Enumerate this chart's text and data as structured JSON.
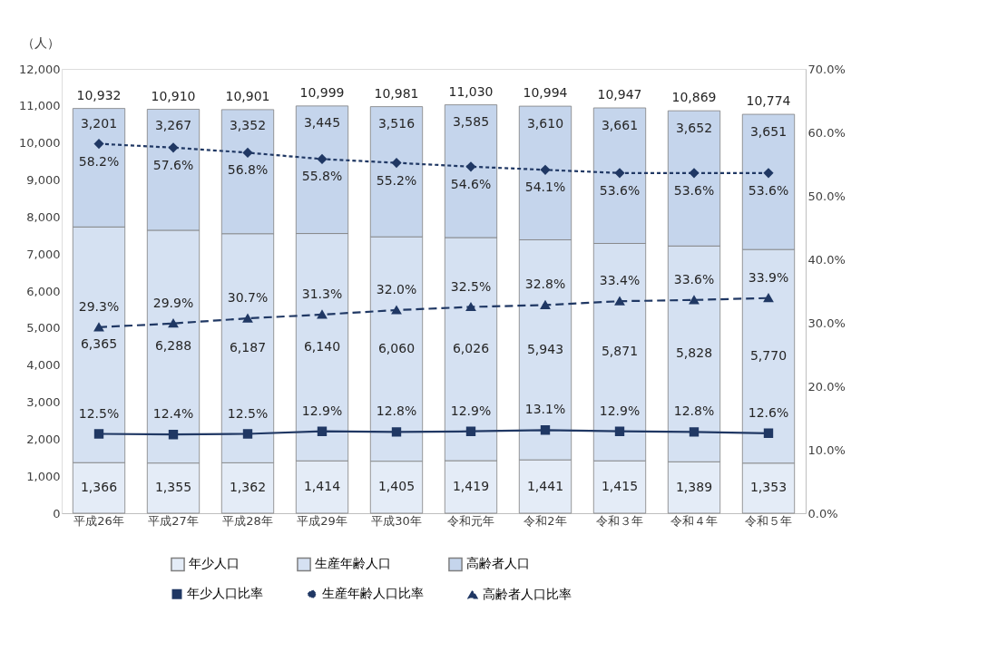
{
  "chart_data": {
    "type": "bar",
    "stacked": true,
    "ylabel": "（人）",
    "categories": [
      "平成26年",
      "平成27年",
      "平成28年",
      "平成29年",
      "平成30年",
      "令和元年",
      "令和2年",
      "令和３年",
      "令和４年",
      "令和５年"
    ],
    "series": [
      {
        "name": "年少人口",
        "color": "#e4ecf7",
        "values": [
          1366,
          1355,
          1362,
          1414,
          1405,
          1419,
          1441,
          1415,
          1389,
          1353
        ],
        "value_labels": [
          "1,366",
          "1,355",
          "1,362",
          "1,414",
          "1,405",
          "1,419",
          "1,441",
          "1,415",
          "1,389",
          "1,353"
        ]
      },
      {
        "name": "生産年齢人口",
        "color": "#d5e1f2",
        "values": [
          6365,
          6288,
          6187,
          6140,
          6060,
          6026,
          5943,
          5871,
          5828,
          5770
        ],
        "value_labels": [
          "6,365",
          "6,288",
          "6,187",
          "6,140",
          "6,060",
          "6,026",
          "5,943",
          "5,871",
          "5,828",
          "5,770"
        ]
      },
      {
        "name": "高齢者人口",
        "color": "#c5d5ec",
        "values": [
          3201,
          3267,
          3352,
          3445,
          3516,
          3585,
          3610,
          3661,
          3652,
          3651
        ],
        "value_labels": [
          "3,201",
          "3,267",
          "3,352",
          "3,445",
          "3,516",
          "3,585",
          "3,610",
          "3,661",
          "3,652",
          "3,651"
        ]
      },
      {
        "name": "年少人口比率",
        "type": "line",
        "axis": "y2",
        "color": "#203864",
        "marker": "square",
        "line_style": "solid",
        "values": [
          12.5,
          12.4,
          12.5,
          12.9,
          12.8,
          12.9,
          13.1,
          12.9,
          12.8,
          12.6
        ],
        "value_labels": [
          "12.5%",
          "12.4%",
          "12.5%",
          "12.9%",
          "12.8%",
          "12.9%",
          "13.1%",
          "12.9%",
          "12.8%",
          "12.6%"
        ]
      },
      {
        "name": "生産年齢人口比率",
        "type": "line",
        "axis": "y2",
        "color": "#203864",
        "marker": "diamond",
        "line_style": "dotted",
        "values": [
          58.2,
          57.6,
          56.8,
          55.8,
          55.2,
          54.6,
          54.1,
          53.6,
          53.6,
          53.6
        ],
        "value_labels": [
          "58.2%",
          "57.6%",
          "56.8%",
          "55.8%",
          "55.2%",
          "54.6%",
          "54.1%",
          "53.6%",
          "53.6%",
          "53.6%"
        ]
      },
      {
        "name": "高齢者人口比率",
        "type": "line",
        "axis": "y2",
        "color": "#203864",
        "marker": "triangle",
        "line_style": "dashed",
        "values": [
          29.3,
          29.9,
          30.7,
          31.3,
          32.0,
          32.5,
          32.8,
          33.4,
          33.6,
          33.9
        ],
        "value_labels": [
          "29.3%",
          "29.9%",
          "30.7%",
          "31.3%",
          "32.0%",
          "32.5%",
          "32.8%",
          "33.4%",
          "33.6%",
          "33.9%"
        ]
      }
    ],
    "totals": [
      "10,932",
      "10,910",
      "10,901",
      "10,999",
      "10,981",
      "11,030",
      "10,994",
      "10,947",
      "10,869",
      "10,774"
    ],
    "ylim": [
      0,
      12000
    ],
    "yticks": [
      {
        "value": 0,
        "label": "0"
      },
      {
        "value": 1000,
        "label": "1,000"
      },
      {
        "value": 2000,
        "label": "2,000"
      },
      {
        "value": 3000,
        "label": "3,000"
      },
      {
        "value": 4000,
        "label": "4,000"
      },
      {
        "value": 5000,
        "label": "5,000"
      },
      {
        "value": 6000,
        "label": "6,000"
      },
      {
        "value": 7000,
        "label": "7,000"
      },
      {
        "value": 8000,
        "label": "8,000"
      },
      {
        "value": 9000,
        "label": "9,000"
      },
      {
        "value": 10000,
        "label": "10,000"
      },
      {
        "value": 11000,
        "label": "11,000"
      },
      {
        "value": 12000,
        "label": "12,000"
      }
    ],
    "y2lim": [
      0,
      70
    ],
    "y2ticks": [
      {
        "value": 0,
        "label": "0.0%"
      },
      {
        "value": 10,
        "label": "10.0%"
      },
      {
        "value": 20,
        "label": "20.0%"
      },
      {
        "value": 30,
        "label": "30.0%"
      },
      {
        "value": 40,
        "label": "40.0%"
      },
      {
        "value": 50,
        "label": "50.0%"
      },
      {
        "value": 60,
        "label": "60.0%"
      },
      {
        "value": 70,
        "label": "70.0%"
      }
    ],
    "grid": false,
    "legend": "bottom"
  }
}
